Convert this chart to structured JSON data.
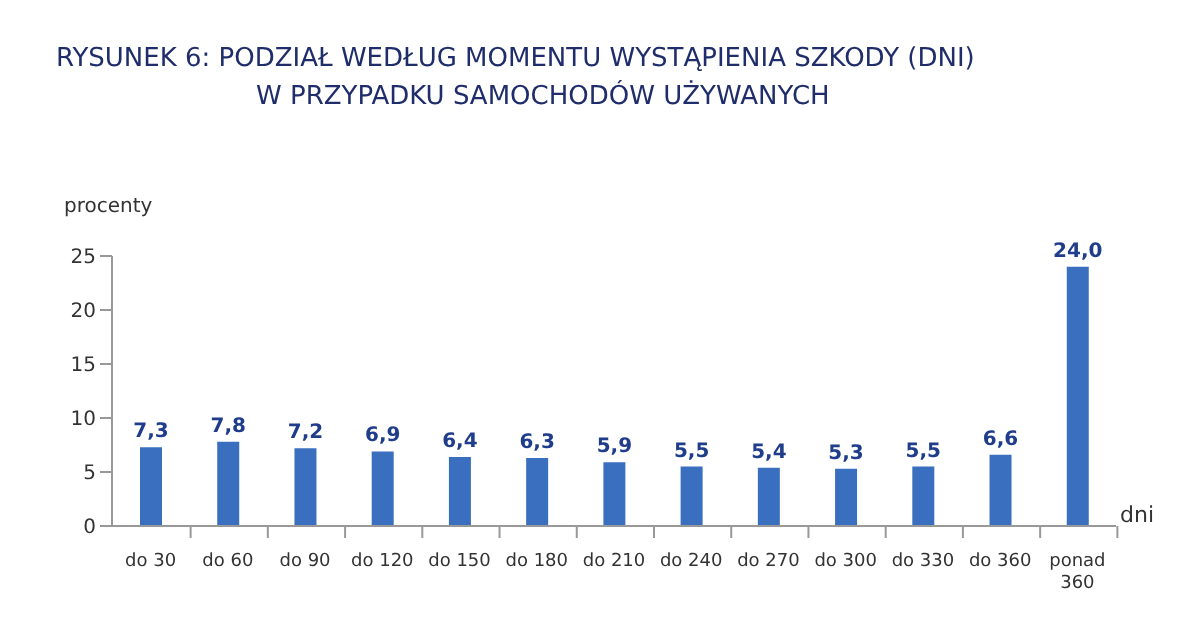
{
  "chart_data": {
    "type": "bar",
    "title": "RYSUNEK 6: PODZIAŁ WEDŁUG MOMENTU WYSTĄPIENIA SZKODY (DNI)\nW PRZYPADKU SAMOCHODÓW UŻYWANYCH",
    "ylabel": "procenty",
    "xlabel": "dni",
    "categories": [
      "do 30",
      "do 60",
      "do 90",
      "do 120",
      "do 150",
      "do 180",
      "do 210",
      "do 240",
      "do 270",
      "do 300",
      "do 330",
      "do 360",
      "ponad 360"
    ],
    "values": [
      7.3,
      7.8,
      7.2,
      6.9,
      6.4,
      6.3,
      5.9,
      5.5,
      5.4,
      5.3,
      5.5,
      6.6,
      24.0
    ],
    "value_labels": [
      "7,3",
      "7,8",
      "7,2",
      "6,9",
      "6,4",
      "6,3",
      "5,9",
      "5,5",
      "5,4",
      "5,3",
      "5,5",
      "6,6",
      "24,0"
    ],
    "color": "#3a6fc0",
    "ylim": [
      0,
      25
    ],
    "yticks": [
      0,
      5,
      10,
      15,
      20,
      25
    ],
    "grid": false
  }
}
